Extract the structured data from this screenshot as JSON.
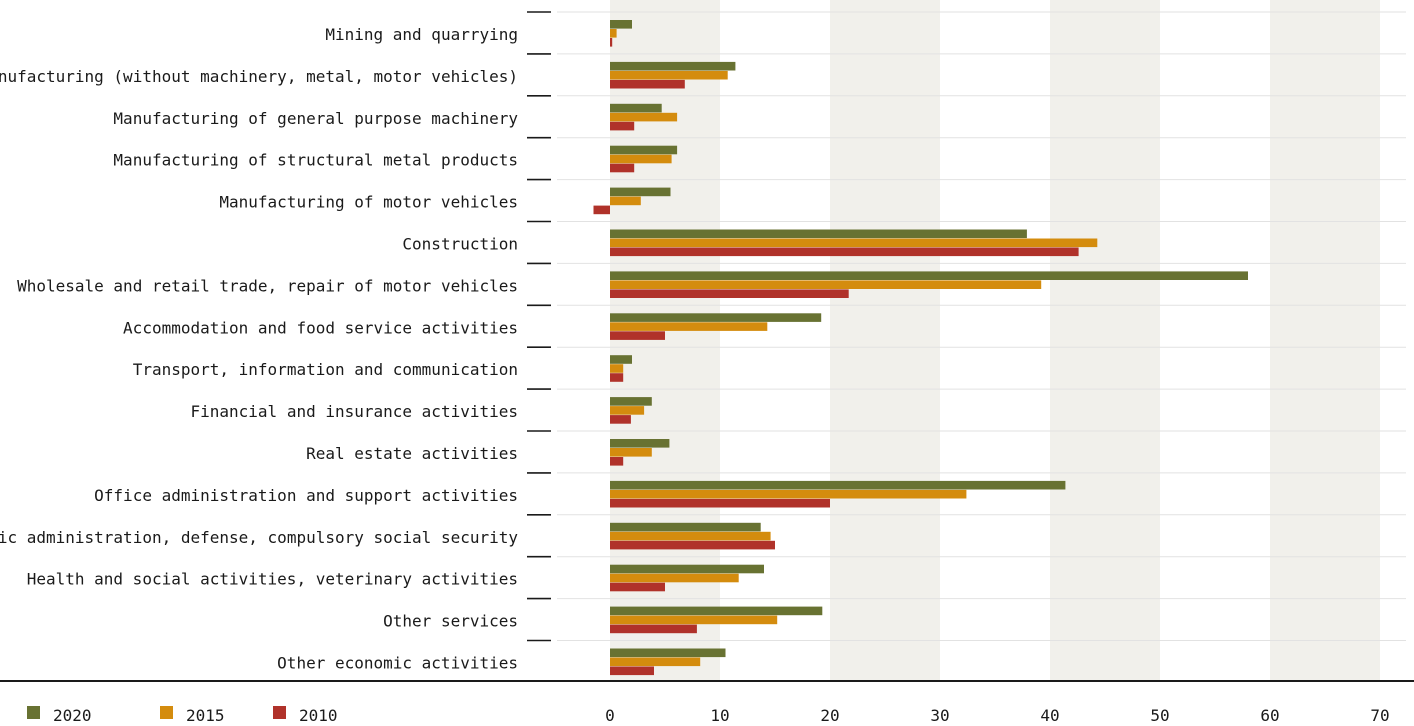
{
  "chart_data": {
    "type": "bar",
    "orientation": "horizontal",
    "categories": [
      "Mining and quarrying",
      "Manufacturing (without machinery, metal, motor vehicles)",
      "Manufacturing of general purpose machinery",
      "Manufacturing of structural metal products",
      "Manufacturing of motor vehicles",
      "Construction",
      "Wholesale and retail trade, repair of motor vehicles",
      "Accommodation and food service activities",
      "Transport, information and communication",
      "Financial and insurance activities",
      "Real estate activities",
      "Office administration and support activities",
      "Public administration, defense, compulsory social security",
      "Health and social activities, veterinary activities",
      "Other services",
      "Other economic activities"
    ],
    "series": [
      {
        "name": "2020",
        "color": "#687232",
        "values": [
          2.0,
          11.4,
          4.7,
          6.1,
          5.5,
          37.9,
          58.0,
          19.2,
          2.0,
          3.8,
          5.4,
          41.4,
          13.7,
          14.0,
          19.3,
          10.5
        ]
      },
      {
        "name": "2015",
        "color": "#d48c0e",
        "values": [
          0.6,
          10.7,
          6.1,
          5.6,
          2.8,
          44.3,
          39.2,
          14.3,
          1.2,
          3.1,
          3.8,
          32.4,
          14.6,
          11.7,
          15.2,
          8.2
        ]
      },
      {
        "name": "2010",
        "color": "#b0322a",
        "values": [
          0.2,
          6.8,
          2.2,
          2.2,
          -1.5,
          42.6,
          21.7,
          5.0,
          1.2,
          1.9,
          1.2,
          20.0,
          15.0,
          5.0,
          7.9,
          4.0
        ]
      }
    ],
    "xlim": [
      0,
      70
    ],
    "xticks": [
      "0",
      "10",
      "20",
      "30",
      "40",
      "50",
      "60",
      "70"
    ],
    "grid": true,
    "legend_position": "bottom-left"
  }
}
